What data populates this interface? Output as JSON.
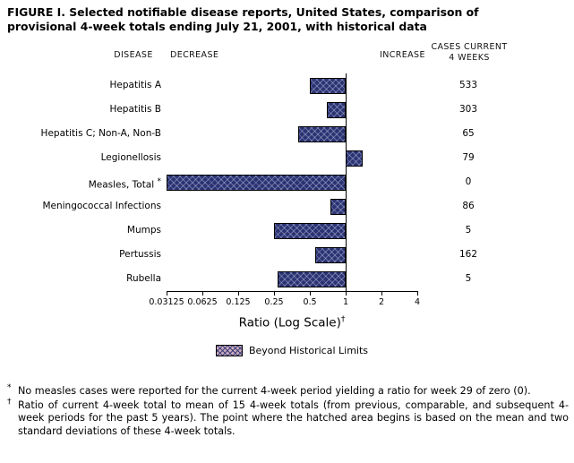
{
  "title": "FIGURE I. Selected notifiable disease reports, United States, comparison of provisional 4-week totals ending July 21, 2001, with historical data",
  "headers": {
    "disease": "DISEASE",
    "decrease": "DECREASE",
    "increase": "INCREASE",
    "cases_line1": "CASES CURRENT",
    "cases_line2": "4 WEEKS"
  },
  "colors": {
    "bar": "#2b3272",
    "legend_swatch": "#c9a9bc",
    "axis": "#000000"
  },
  "chart_data": {
    "type": "bar",
    "orientation": "horizontal",
    "scale": "log2",
    "baseline": 1,
    "xlim": [
      0.03125,
      4
    ],
    "x_ticks": [
      0.03125,
      0.0625,
      0.125,
      0.25,
      0.5,
      1,
      2,
      4
    ],
    "x_tick_labels": [
      "0.03125",
      "0.0625",
      "0.125",
      "0.25",
      "0.5",
      "1",
      "2",
      "4"
    ],
    "xlabel": "Ratio (Log Scale)",
    "xlabel_sup": "†",
    "rows": [
      {
        "disease": "Hepatitis A",
        "ratio": 0.5,
        "cases": "533",
        "beyond_limits": false
      },
      {
        "disease": "Hepatitis B",
        "ratio": 0.7,
        "cases": "303",
        "beyond_limits": false
      },
      {
        "disease": "Hepatitis C; Non-A, Non-B",
        "ratio": 0.4,
        "cases": "65",
        "beyond_limits": false
      },
      {
        "disease": "Legionellosis",
        "ratio": 1.4,
        "cases": "79",
        "beyond_limits": false
      },
      {
        "disease": "Measles, Total",
        "marker": "*",
        "ratio": 0.03125,
        "cases": "0",
        "beyond_limits": true
      },
      {
        "disease": "Meningococcal Infections",
        "ratio": 0.75,
        "cases": "86",
        "beyond_limits": false
      },
      {
        "disease": "Mumps",
        "ratio": 0.25,
        "cases": "5",
        "beyond_limits": false
      },
      {
        "disease": "Pertussis",
        "ratio": 0.55,
        "cases": "162",
        "beyond_limits": false
      },
      {
        "disease": "Rubella",
        "ratio": 0.27,
        "cases": "5",
        "beyond_limits": false
      }
    ],
    "legend": [
      "Beyond Historical Limits"
    ]
  },
  "footnotes": [
    {
      "marker": "*",
      "text": "No measles cases were reported for the current 4-week period yielding a ratio for week 29 of zero (0)."
    },
    {
      "marker": "†",
      "text": "Ratio of current 4-week total to mean of 15 4-week totals (from previous, comparable, and subsequent 4-week periods for the past 5 years). The point where the hatched area begins is based on the mean and two standard deviations of these 4-week totals."
    }
  ]
}
